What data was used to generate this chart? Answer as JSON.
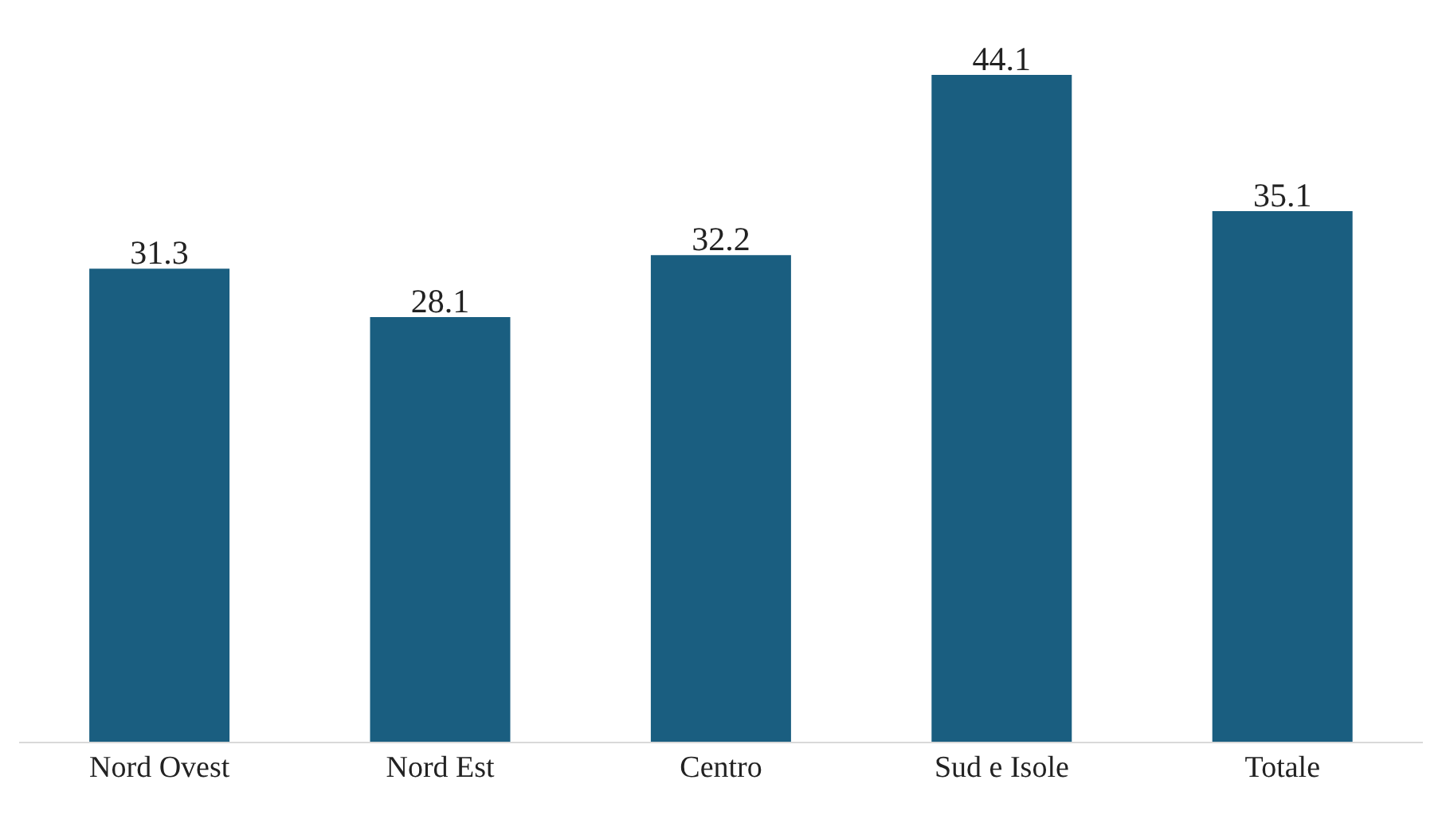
{
  "chart_data": {
    "type": "bar",
    "categories": [
      "Nord Ovest",
      "Nord Est",
      "Centro",
      "Sud e Isole",
      "Totale"
    ],
    "values": [
      31.3,
      28.1,
      32.2,
      44.1,
      35.1
    ],
    "color": "#1a5e80",
    "data_labels": true,
    "grid": false
  }
}
